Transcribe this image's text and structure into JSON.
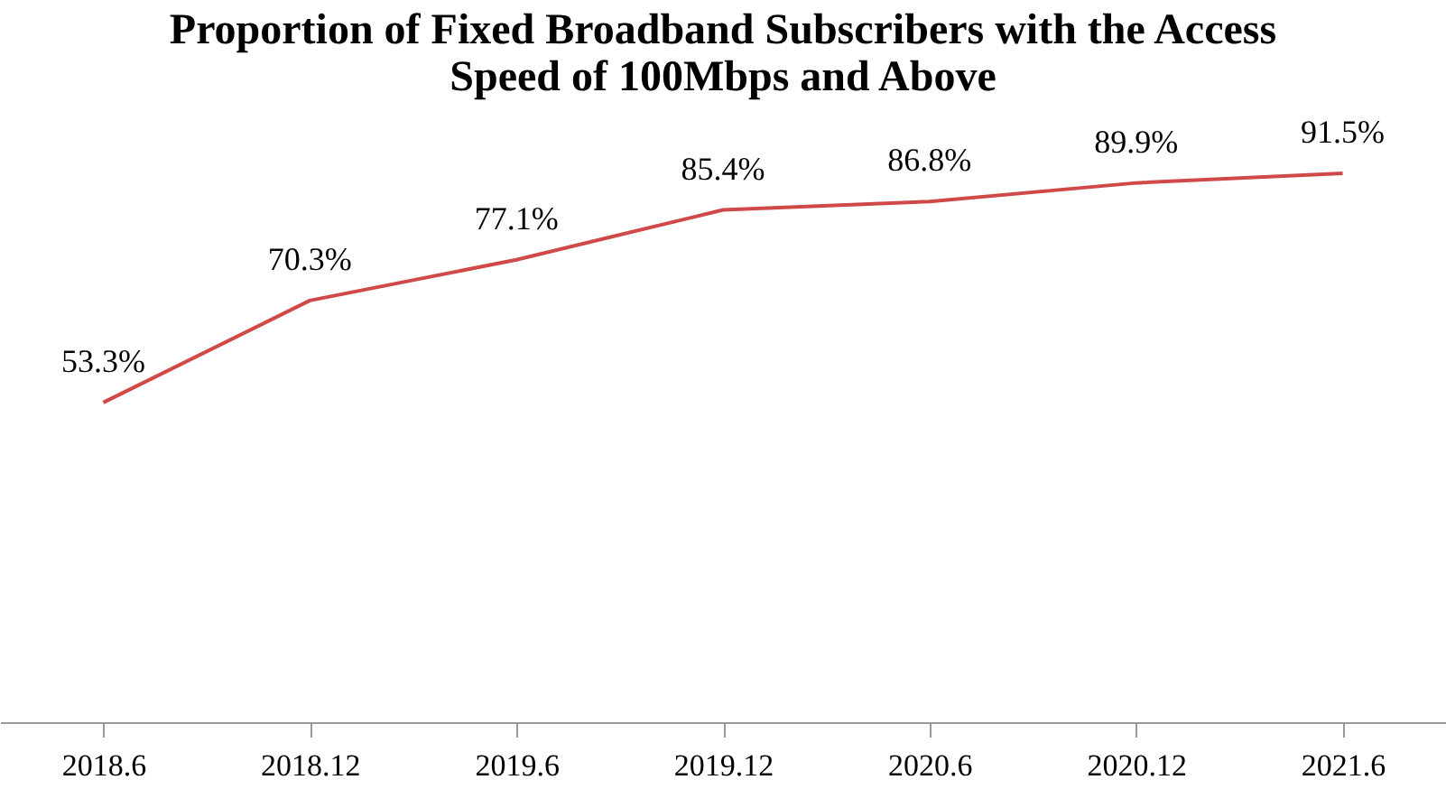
{
  "chart_data": {
    "type": "line",
    "title": "Proportion of Fixed Broadband Subscribers with the Access Speed of 100Mbps and Above",
    "categories": [
      "2018.6",
      "2018.12",
      "2019.6",
      "2019.12",
      "2020.6",
      "2020.12",
      "2021.6"
    ],
    "series": [
      {
        "color": "#d04848",
        "values": [
          53.3,
          70.3,
          77.1,
          85.4,
          86.8,
          89.9,
          91.5
        ],
        "value_labels": [
          "53.3%",
          "70.3%",
          "77.1%",
          "85.4%",
          "86.8%",
          "89.9%",
          "91.5%"
        ]
      }
    ],
    "tick_labels": "x",
    "grid": false,
    "marker": "none",
    "line_style": "solid"
  }
}
